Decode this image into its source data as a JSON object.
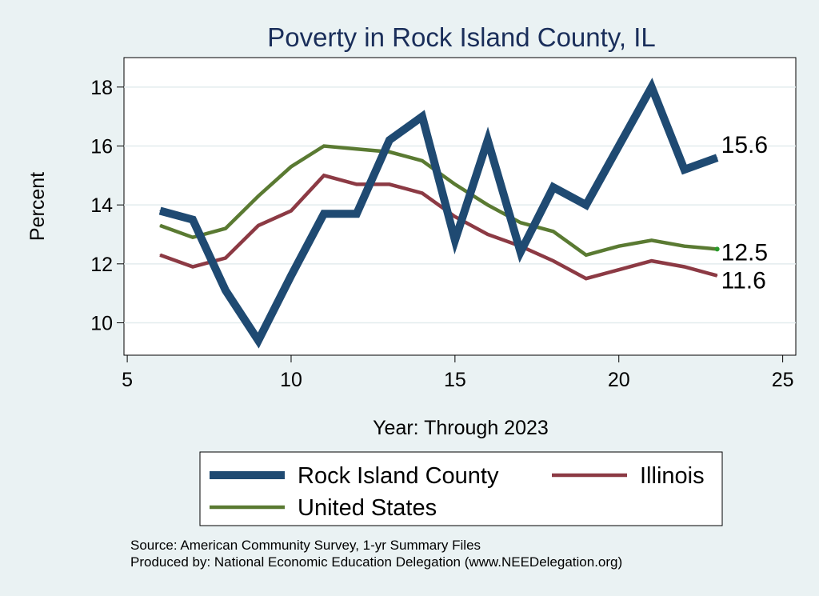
{
  "chart_data": {
    "type": "line",
    "title": "Poverty in Rock Island County, IL",
    "xlabel": "Year: Through 2023",
    "ylabel": "Percent",
    "xlim": [
      4.9,
      25.4
    ],
    "ylim": [
      8.9,
      19.0
    ],
    "xticks": [
      5,
      10,
      15,
      20,
      25
    ],
    "yticks": [
      10,
      12,
      14,
      16,
      18
    ],
    "grid": true,
    "legend_position": "bottom",
    "series": [
      {
        "name": "Rock Island County",
        "color": "#1f4a72",
        "width": 10,
        "x": [
          6,
          7,
          8,
          9,
          10,
          11,
          12,
          13,
          14,
          15,
          16,
          17,
          18,
          19,
          20,
          21,
          22,
          23
        ],
        "values": [
          13.8,
          13.5,
          11.1,
          9.4,
          11.6,
          13.7,
          13.7,
          16.2,
          17.0,
          12.8,
          16.2,
          12.4,
          14.6,
          14.0,
          16.0,
          18.0,
          15.2,
          15.6
        ],
        "end_label": "15.6"
      },
      {
        "name": "Illinois",
        "color": "#8c3a44",
        "width": 4.5,
        "x": [
          6,
          7,
          8,
          9,
          10,
          11,
          12,
          13,
          14,
          15,
          16,
          17,
          18,
          19,
          20,
          21,
          22,
          23
        ],
        "values": [
          12.3,
          11.9,
          12.2,
          13.3,
          13.8,
          15.0,
          14.7,
          14.7,
          14.4,
          13.6,
          13.0,
          12.6,
          12.1,
          11.5,
          11.8,
          12.1,
          11.9,
          11.6
        ],
        "end_label": "11.6"
      },
      {
        "name": "United States",
        "color": "#5a7a32",
        "width": 4.5,
        "x": [
          6,
          7,
          8,
          9,
          10,
          11,
          12,
          13,
          14,
          15,
          16,
          17,
          18,
          19,
          20,
          21,
          22,
          23
        ],
        "values": [
          13.3,
          12.9,
          13.2,
          14.3,
          15.3,
          16.0,
          15.9,
          15.8,
          15.5,
          14.7,
          14.0,
          13.4,
          13.1,
          12.3,
          12.6,
          12.8,
          12.6,
          12.5
        ],
        "end_label": "12.5"
      }
    ],
    "source": "Source: American Community Survey, 1-yr Summary Files",
    "produced_by": "Produced by: National Economic Education Delegation (www.NEEDelegation.org)"
  },
  "colors": {
    "background": "#eaf2f3",
    "plot_background": "#ffffff",
    "grid": "#e3ecee",
    "title": "#1a2e5a"
  }
}
